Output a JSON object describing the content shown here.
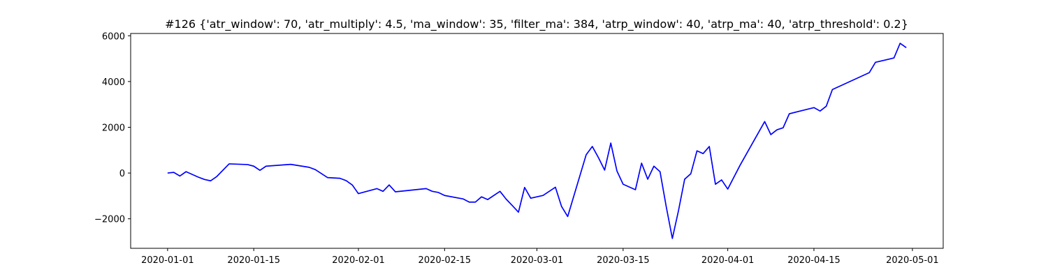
{
  "chart_data": {
    "type": "line",
    "title": "#126 {'atr_window': 70, 'atr_multiply': 4.5, 'ma_window': 35, 'filter_ma': 384, 'atrp_window': 40, 'atrp_ma': 40, 'atrp_threshold': 0.2}",
    "color": "#0000ff",
    "x": [
      "2020-01-01",
      "2020-01-02",
      "2020-01-03",
      "2020-01-04",
      "2020-01-06",
      "2020-01-07",
      "2020-01-08",
      "2020-01-09",
      "2020-01-11",
      "2020-01-14",
      "2020-01-15",
      "2020-01-16",
      "2020-01-17",
      "2020-01-21",
      "2020-01-24",
      "2020-01-25",
      "2020-01-27",
      "2020-01-29",
      "2020-01-30",
      "2020-01-31",
      "2020-02-01",
      "2020-02-04",
      "2020-02-05",
      "2020-02-06",
      "2020-02-07",
      "2020-02-12",
      "2020-02-13",
      "2020-02-14",
      "2020-02-15",
      "2020-02-18",
      "2020-02-19",
      "2020-02-20",
      "2020-02-21",
      "2020-02-22",
      "2020-02-24",
      "2020-02-25",
      "2020-02-26",
      "2020-02-27",
      "2020-02-28",
      "2020-02-29",
      "2020-03-02",
      "2020-03-04",
      "2020-03-05",
      "2020-03-06",
      "2020-03-09",
      "2020-03-10",
      "2020-03-11",
      "2020-03-12",
      "2020-03-13",
      "2020-03-14",
      "2020-03-15",
      "2020-03-17",
      "2020-03-18",
      "2020-03-19",
      "2020-03-20",
      "2020-03-21",
      "2020-03-22",
      "2020-03-23",
      "2020-03-24",
      "2020-03-25",
      "2020-03-26",
      "2020-03-27",
      "2020-03-28",
      "2020-03-29",
      "2020-03-30",
      "2020-03-31",
      "2020-04-01",
      "2020-04-03",
      "2020-04-07",
      "2020-04-08",
      "2020-04-09",
      "2020-04-10",
      "2020-04-11",
      "2020-04-15",
      "2020-04-16",
      "2020-04-17",
      "2020-04-18",
      "2020-04-24",
      "2020-04-25",
      "2020-04-28",
      "2020-04-29",
      "2020-04-30"
    ],
    "values": [
      0,
      30,
      -130,
      60,
      -180,
      -280,
      -340,
      -150,
      400,
      370,
      300,
      120,
      300,
      380,
      250,
      150,
      -200,
      -230,
      -330,
      -520,
      -900,
      -680,
      -800,
      -520,
      -820,
      -680,
      -800,
      -850,
      -980,
      -1130,
      -1270,
      -1270,
      -1040,
      -1160,
      -800,
      -1140,
      -1420,
      -1710,
      -630,
      -1100,
      -980,
      -620,
      -1460,
      -1900,
      800,
      1160,
      670,
      130,
      1310,
      90,
      -490,
      -730,
      430,
      -270,
      300,
      60,
      -1460,
      -2860,
      -1640,
      -270,
      -30,
      970,
      850,
      1160,
      -490,
      -300,
      -700,
      340,
      2250,
      1680,
      1890,
      1980,
      2590,
      2860,
      2710,
      2920,
      3650,
      4390,
      4840,
      5030,
      5670,
      5480
    ],
    "xlim": [
      "2019-12-26",
      "2020-05-06"
    ],
    "xticks": [
      "2020-01-01",
      "2020-01-15",
      "2020-02-01",
      "2020-02-15",
      "2020-03-01",
      "2020-03-15",
      "2020-04-01",
      "2020-04-15",
      "2020-05-01"
    ],
    "ylim": [
      -3290,
      6100
    ],
    "yticks": [
      {
        "value": -2000,
        "label": "−2000"
      },
      0,
      2000,
      4000,
      6000
    ]
  }
}
